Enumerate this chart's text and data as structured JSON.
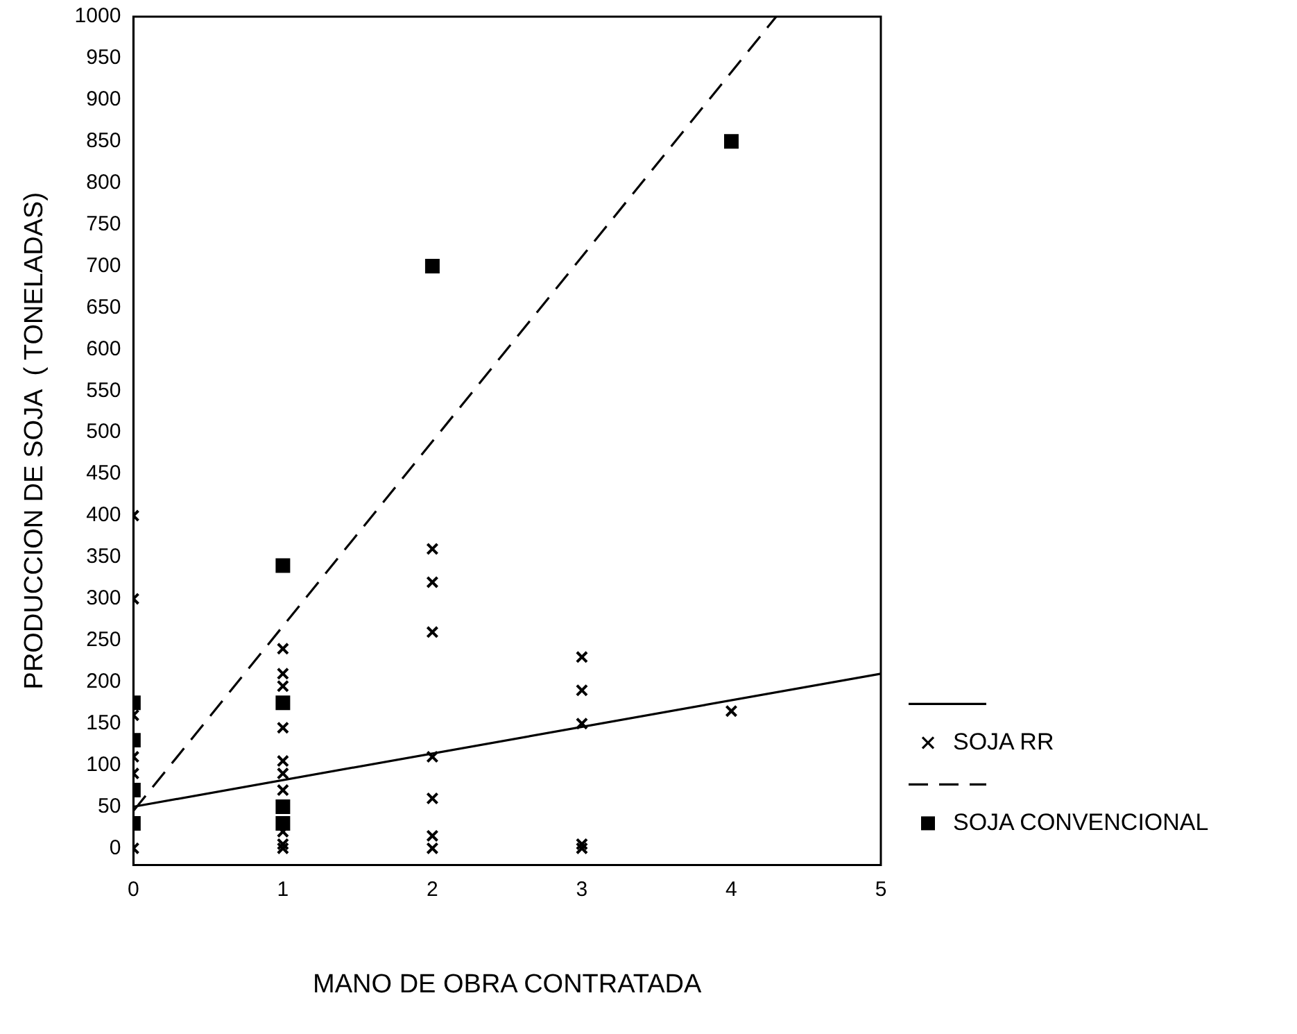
{
  "chart_data": {
    "type": "scatter",
    "xlabel": "MANO DE OBRA CONTRATADA",
    "ylabel": "PRODUCCION DE SOJA  ( TONELADAS)",
    "xlim": [
      0,
      5
    ],
    "xticks": [
      0,
      1,
      2,
      3,
      4,
      5
    ],
    "ylim": [
      -20,
      1000
    ],
    "yticks": [
      0,
      50,
      100,
      150,
      200,
      250,
      300,
      350,
      400,
      450,
      500,
      550,
      600,
      650,
      700,
      750,
      800,
      850,
      900,
      950,
      1000
    ],
    "grid": false,
    "legend": "right",
    "series": [
      {
        "name": "SOJA RR",
        "type": "scatter",
        "marker": "cross",
        "color": "#000000",
        "x": [
          0,
          0,
          0,
          0,
          0,
          0,
          1,
          1,
          1,
          1,
          1,
          1,
          1,
          1,
          1,
          1,
          2,
          2,
          2,
          2,
          2,
          2,
          2,
          3,
          3,
          3,
          3,
          3,
          4
        ],
        "values": [
          400,
          300,
          160,
          110,
          90,
          0,
          240,
          210,
          195,
          145,
          105,
          90,
          70,
          20,
          5,
          0,
          360,
          320,
          260,
          110,
          60,
          15,
          0,
          230,
          190,
          150,
          5,
          0,
          165
        ]
      },
      {
        "name": "SOJA CONVENCIONAL",
        "type": "scatter",
        "marker": "square",
        "color": "#000000",
        "x": [
          0,
          0,
          0,
          0,
          1,
          1,
          1,
          1,
          2,
          4
        ],
        "values": [
          175,
          130,
          70,
          30,
          340,
          175,
          50,
          30,
          700,
          850
        ]
      },
      {
        "type": "line",
        "line_style": "solid",
        "marker": "none",
        "color": "#000000",
        "x": [
          0,
          5
        ],
        "values": [
          50,
          210
        ]
      },
      {
        "type": "line",
        "line_style": "dashed",
        "marker": "none",
        "color": "#000000",
        "x": [
          0,
          4.3
        ],
        "values": [
          45,
          1000
        ]
      }
    ]
  }
}
